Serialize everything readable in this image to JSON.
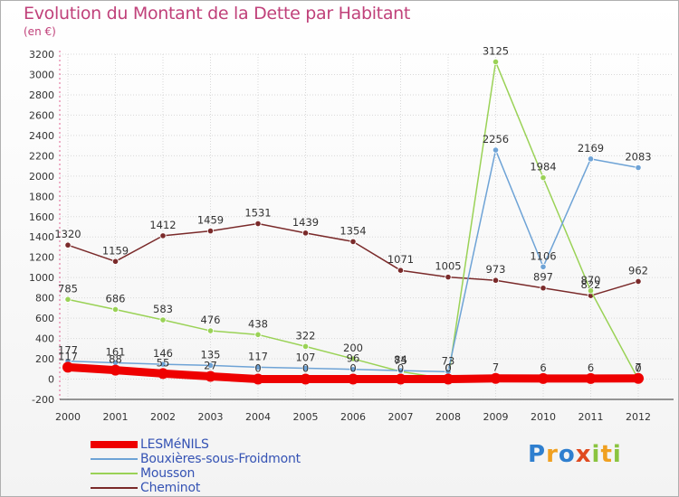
{
  "header": {
    "title": "Evolution du Montant de la Dette par Habitant",
    "subtitle": "(en €)"
  },
  "logo": {
    "text": "Proxiti",
    "letters": [
      "P",
      "r",
      "o",
      "x",
      "i",
      "t",
      "i"
    ],
    "colors": [
      "#2f7fcf",
      "#f0a020",
      "#2f7fcf",
      "#e04a20",
      "#8ac43f",
      "#f0a020",
      "#8ac43f"
    ]
  },
  "chart_data": {
    "type": "line",
    "title": "Evolution du Montant de la Dette par Habitant",
    "subtitle": "(en €)",
    "categories": [
      "2000",
      "2001",
      "2002",
      "2003",
      "2004",
      "2005",
      "2006",
      "2007",
      "2008",
      "2009",
      "2010",
      "2011",
      "2012"
    ],
    "ylim": [
      -200,
      3200
    ],
    "yticks": [
      -200,
      0,
      200,
      400,
      600,
      800,
      1000,
      1200,
      1400,
      1600,
      1800,
      2000,
      2200,
      2400,
      2600,
      2800,
      3000,
      3200
    ],
    "grid": true,
    "legend_position": "bottom-left",
    "series": [
      {
        "name": "LESMéNILS",
        "color": "#ee0000",
        "width": 9,
        "values": [
          117,
          88,
          55,
          27,
          0,
          0,
          0,
          0,
          0,
          7,
          6,
          6,
          7
        ],
        "labels": [
          "117",
          "88",
          "55",
          "27",
          "0",
          "0",
          "0",
          "0",
          "0",
          "7",
          "6",
          "6",
          "7"
        ]
      },
      {
        "name": "Bouxières-sous-Froidmont",
        "color": "#6ea3d6",
        "width": 1.5,
        "values": [
          177,
          161,
          146,
          135,
          117,
          107,
          96,
          84,
          73,
          2256,
          1106,
          2169,
          2083
        ],
        "labels": [
          "177",
          "161",
          "146",
          "135",
          "117",
          "107",
          "96",
          "84",
          "73",
          "2256",
          "1106",
          "2169",
          "2083"
        ]
      },
      {
        "name": "Mousson",
        "color": "#9ad256",
        "width": 1.5,
        "values": [
          785,
          686,
          583,
          476,
          438,
          322,
          200,
          75,
          0,
          3125,
          1984,
          870,
          0
        ],
        "labels": [
          "785",
          "686",
          "583",
          "476",
          "438",
          "322",
          "200",
          "75",
          "0",
          "3125",
          "1984",
          "870",
          "0"
        ]
      },
      {
        "name": "Cheminot",
        "color": "#7a2a2a",
        "width": 1.5,
        "values": [
          1320,
          1159,
          1412,
          1459,
          1531,
          1439,
          1354,
          1071,
          1005,
          973,
          897,
          822,
          962
        ],
        "labels": [
          "1320",
          "1159",
          "1412",
          "1459",
          "1531",
          "1439",
          "1354",
          "1071",
          "1005",
          "973",
          "897",
          "822",
          "962"
        ]
      }
    ]
  }
}
